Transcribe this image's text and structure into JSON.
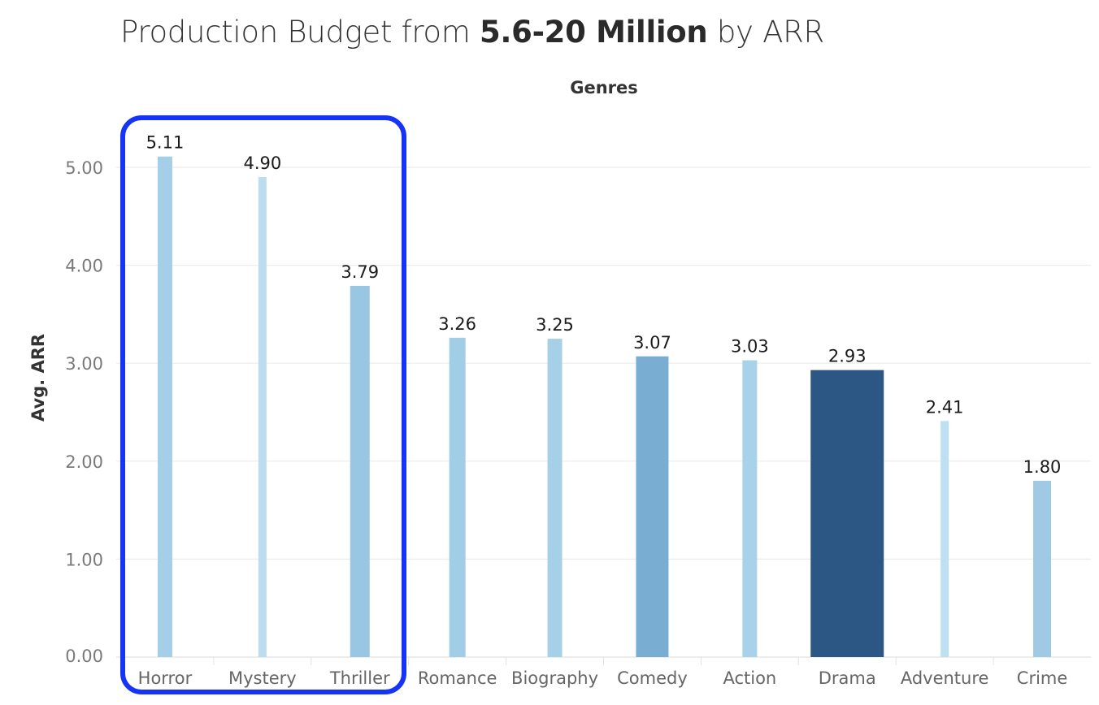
{
  "title": {
    "prefix": "Production Budget from ",
    "bold": "5.6-20 Million",
    "suffix": " by ARR"
  },
  "chart_data": {
    "type": "bar",
    "xlabel": "Genres",
    "ylabel": "Avg. ARR",
    "ylim": [
      0,
      5.5
    ],
    "yticks": [
      "0.00",
      "1.00",
      "2.00",
      "3.00",
      "4.00",
      "5.00"
    ],
    "categories": [
      "Horror",
      "Mystery",
      "Thriller",
      "Romance",
      "Biography",
      "Comedy",
      "Action",
      "Drama",
      "Adventure",
      "Crime"
    ],
    "values": [
      5.11,
      4.9,
      3.79,
      3.26,
      3.25,
      3.07,
      3.03,
      2.93,
      2.41,
      1.8
    ],
    "value_labels": [
      "5.11",
      "4.90",
      "3.79",
      "3.26",
      "3.25",
      "3.07",
      "3.03",
      "2.93",
      "2.41",
      "1.80"
    ],
    "bar_colors": [
      "#a5cfe8",
      "#bcdcf0",
      "#99c6e2",
      "#a2cde7",
      "#a6d0e8",
      "#7aadd2",
      "#a8d2ea",
      "#2c5784",
      "#bde0f3",
      "#a0cae4"
    ],
    "grid": true,
    "highlight": {
      "categories": [
        "Horror",
        "Mystery",
        "Thriller"
      ],
      "color": "#1534f5"
    }
  }
}
